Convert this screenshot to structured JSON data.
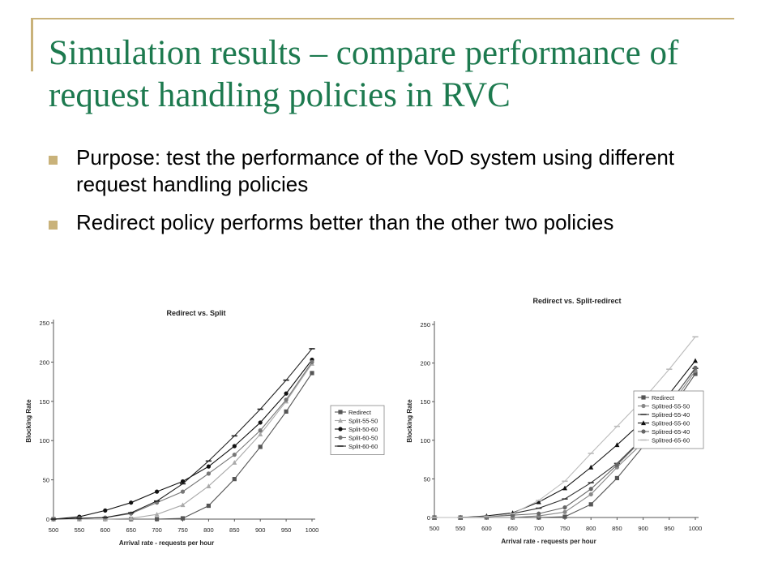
{
  "slide": {
    "title": "Simulation results – compare performance of request handling policies in RVC",
    "bullets": [
      "Purpose: test the performance of the VoD system using different request handling policies",
      "Redirect policy performs better than the other two policies"
    ],
    "colors": {
      "title": "#1d7a4f",
      "accent": "#c9b27a"
    }
  },
  "chart_data": [
    {
      "type": "line",
      "title": "Redirect vs. Split",
      "xlabel": "Arrival rate - requests per hour",
      "ylabel": "Blocking Rate",
      "x": [
        500,
        550,
        600,
        650,
        700,
        750,
        800,
        850,
        900,
        950,
        1000
      ],
      "ylim": [
        0,
        250
      ],
      "yticks": [
        0,
        50,
        100,
        150,
        200,
        250
      ],
      "legend_position": "right",
      "series": [
        {
          "name": "Redirect",
          "color": "#555555",
          "marker": "square",
          "values": [
            0,
            0,
            0,
            0,
            0,
            1,
            17,
            51,
            92,
            137,
            186
          ]
        },
        {
          "name": "Split-55-50",
          "color": "#aaaaaa",
          "marker": "triangle",
          "values": [
            0,
            0,
            0,
            1,
            6,
            18,
            42,
            72,
            108,
            150,
            198
          ]
        },
        {
          "name": "Split-50-60",
          "color": "#111111",
          "marker": "circle",
          "values": [
            0,
            3,
            11,
            21,
            35,
            48,
            67,
            93,
            123,
            160,
            203
          ]
        },
        {
          "name": "Split-60-50",
          "color": "#777777",
          "marker": "circle",
          "values": [
            0,
            1,
            2,
            7,
            21,
            35,
            58,
            82,
            113,
            152,
            200
          ]
        },
        {
          "name": "Split-60-60",
          "color": "#222222",
          "marker": "dash",
          "values": [
            0,
            1,
            2,
            8,
            23,
            45,
            74,
            106,
            140,
            177,
            217
          ]
        }
      ]
    },
    {
      "type": "line",
      "title": "Redirect vs. Split-redirect",
      "xlabel": "Arrival rate - requests per hour",
      "ylabel": "Blocking Rate",
      "x": [
        500,
        550,
        600,
        650,
        700,
        750,
        800,
        850,
        900,
        950,
        1000
      ],
      "ylim": [
        0,
        250
      ],
      "yticks": [
        0,
        50,
        100,
        150,
        200,
        250
      ],
      "legend_position": "right",
      "series": [
        {
          "name": "Redirect",
          "color": "#555555",
          "marker": "square",
          "values": [
            0,
            0,
            0,
            0,
            0,
            1,
            17,
            51,
            92,
            137,
            186
          ]
        },
        {
          "name": "Splitred-55-50",
          "color": "#888888",
          "marker": "circle",
          "values": [
            0,
            0,
            0,
            0,
            2,
            7,
            30,
            65,
            97,
            142,
            190
          ]
        },
        {
          "name": "Splitred-55-40",
          "color": "#333333",
          "marker": "dash",
          "values": [
            0,
            0,
            1,
            5,
            12,
            24,
            45,
            70,
            103,
            148,
            193
          ]
        },
        {
          "name": "Splitred-55-60",
          "color": "#111111",
          "marker": "triangle",
          "values": [
            0,
            0,
            2,
            6,
            20,
            38,
            65,
            94,
            125,
            160,
            203
          ]
        },
        {
          "name": "Splitred-65-40",
          "color": "#666666",
          "marker": "circle",
          "values": [
            0,
            0,
            1,
            3,
            5,
            13,
            37,
            68,
            102,
            147,
            194
          ]
        },
        {
          "name": "Splitred-65-60",
          "color": "#bbbbbb",
          "marker": "dash",
          "values": [
            0,
            0,
            1,
            5,
            22,
            47,
            83,
            118,
            153,
            192,
            234
          ]
        }
      ]
    }
  ]
}
